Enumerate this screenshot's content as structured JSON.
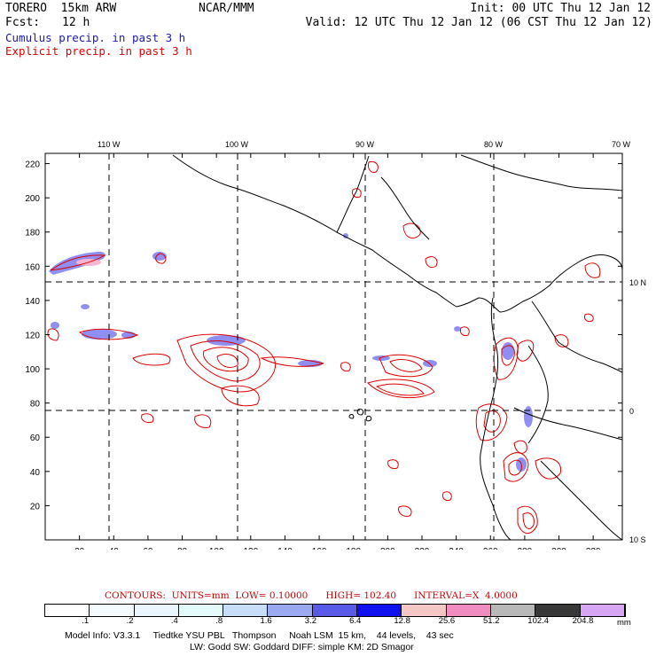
{
  "header": {
    "model": "TORERO  15km ARW",
    "center": "NCAR/MMM",
    "init": "Init: 00 UTC Thu 12 Jan 12",
    "fcst_label": "Fcst:",
    "fcst_value": "12 h",
    "valid": "Valid: 12 UTC Thu 12 Jan 12 (06 CST Thu 12 Jan 12)"
  },
  "legend": {
    "cumulus": "Cumulus precip. in past 3 h",
    "explicit": "Explicit precip. in past 3 h",
    "cumulus_color": "#1a1ab0",
    "explicit_color": "#dd0000"
  },
  "map": {
    "lon_labels": [
      "110 W",
      "100 W",
      "90 W",
      "80 W",
      "70 W"
    ],
    "lat_labels": [
      "10 N",
      "0",
      "10 S"
    ],
    "x_ticks": [
      "20",
      "40",
      "60",
      "80",
      "100",
      "120",
      "140",
      "160",
      "180",
      "200",
      "220",
      "240",
      "260",
      "280",
      "300",
      "320"
    ],
    "y_ticks": [
      "220",
      "200",
      "180",
      "160",
      "140",
      "120",
      "100",
      "80",
      "60",
      "40",
      "20"
    ]
  },
  "contours": {
    "label": "CONTOURS:",
    "units": "UNITS=mm",
    "low": "LOW= 0.10000",
    "high": "HIGH= 102.40",
    "interval": "INTERVAL=X  4.0000"
  },
  "colorbar": {
    "colors": [
      "#ffffff",
      "#f3fbff",
      "#eaf6ff",
      "#e4fbfb",
      "#c6def7",
      "#9aa9f0",
      "#5a5ae8",
      "#1010f0",
      "#f5c6c6",
      "#f08cc0",
      "#b8b8b8",
      "#383838",
      "#d8a4f4"
    ],
    "labels": [
      ".1",
      ".2",
      ".4",
      ".8",
      "1.6",
      "3.2",
      "6.4",
      "12.8",
      "25.6",
      "51.2",
      "102.4",
      "204.8"
    ],
    "unit": "mm"
  },
  "footer": {
    "line1": "Model Info: V3.3.1     Tiedtke YSU PBL   Thompson     Noah LSM  15 km,    44 levels,    43 sec",
    "line2": "LW: Godd SW: Goddard DIFF: simple KM: 2D Smagor"
  }
}
